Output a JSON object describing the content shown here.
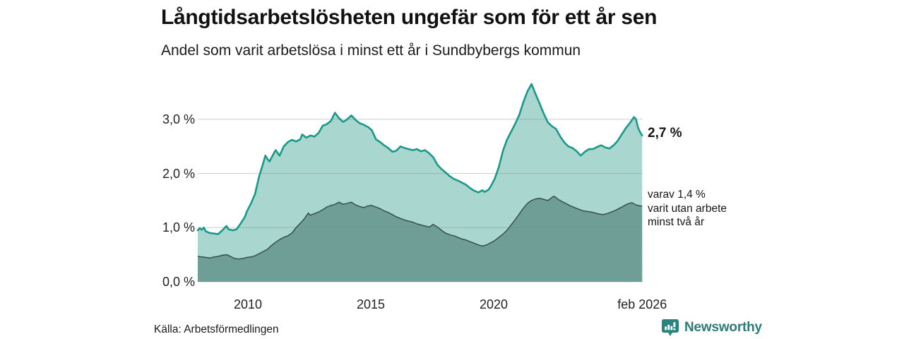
{
  "header": {
    "title": "Långtidsarbetslösheten ungefär som för ett år sen",
    "subtitle": "Andel som varit arbetslösa i minst ett år i Sundbybergs kommun"
  },
  "chart_data": {
    "type": "area",
    "title": "Långtidsarbetslösheten ungefär som för ett år sen",
    "subtitle": "Andel som varit arbetslösa i minst ett år i Sundbybergs kommun",
    "unit": "%",
    "grid": true,
    "x_axis": {
      "range": [
        2008.0,
        2026.083
      ],
      "ticks": [
        {
          "t": 2010.04,
          "label": "2010"
        },
        {
          "t": 2015.04,
          "label": "2015"
        },
        {
          "t": 2020.04,
          "label": "2020"
        },
        {
          "t": 2026.083,
          "label": "feb 2026"
        }
      ]
    },
    "y_axis": {
      "range": [
        0,
        3.8
      ],
      "ticks": [
        {
          "value": 0,
          "label": "0,0 %"
        },
        {
          "value": 1,
          "label": "1,0 %"
        },
        {
          "value": 2,
          "label": "2,0 %"
        },
        {
          "value": 3,
          "label": "3,0 %"
        }
      ]
    },
    "colors": {
      "total_line": "#1a998a",
      "total_fill": "#a9d6cf",
      "two_year_line": "#35504d",
      "two_year_fill": "#6f9e97",
      "gridline": "#d9dcdc"
    },
    "end_labels": {
      "total": "2,7 %",
      "two_years": "varav 1,4 %\nvarit utan arbete\nminst två år"
    },
    "series": [
      {
        "name": "Andel arbetslösa minst ett år",
        "end_value": 2.7,
        "points": [
          [
            2008.0,
            0.95
          ],
          [
            2008.08,
            0.99
          ],
          [
            2008.17,
            0.96
          ],
          [
            2008.25,
            1.0
          ],
          [
            2008.33,
            0.93
          ],
          [
            2008.5,
            0.9
          ],
          [
            2008.67,
            0.89
          ],
          [
            2008.83,
            0.88
          ],
          [
            2009.0,
            0.95
          ],
          [
            2009.08,
            0.99
          ],
          [
            2009.17,
            1.03
          ],
          [
            2009.25,
            0.97
          ],
          [
            2009.42,
            0.95
          ],
          [
            2009.58,
            0.97
          ],
          [
            2009.75,
            1.08
          ],
          [
            2009.92,
            1.2
          ],
          [
            2010.0,
            1.3
          ],
          [
            2010.17,
            1.45
          ],
          [
            2010.33,
            1.62
          ],
          [
            2010.5,
            1.95
          ],
          [
            2010.67,
            2.2
          ],
          [
            2010.75,
            2.33
          ],
          [
            2010.83,
            2.27
          ],
          [
            2010.92,
            2.22
          ],
          [
            2011.08,
            2.36
          ],
          [
            2011.17,
            2.43
          ],
          [
            2011.33,
            2.33
          ],
          [
            2011.5,
            2.5
          ],
          [
            2011.67,
            2.58
          ],
          [
            2011.83,
            2.62
          ],
          [
            2012.0,
            2.59
          ],
          [
            2012.17,
            2.63
          ],
          [
            2012.25,
            2.72
          ],
          [
            2012.42,
            2.66
          ],
          [
            2012.58,
            2.7
          ],
          [
            2012.75,
            2.68
          ],
          [
            2012.92,
            2.75
          ],
          [
            2013.08,
            2.88
          ],
          [
            2013.25,
            2.91
          ],
          [
            2013.42,
            2.97
          ],
          [
            2013.58,
            3.12
          ],
          [
            2013.75,
            3.02
          ],
          [
            2013.92,
            2.95
          ],
          [
            2014.08,
            3.0
          ],
          [
            2014.25,
            3.07
          ],
          [
            2014.42,
            2.99
          ],
          [
            2014.58,
            2.93
          ],
          [
            2014.75,
            2.9
          ],
          [
            2014.92,
            2.86
          ],
          [
            2015.08,
            2.8
          ],
          [
            2015.25,
            2.63
          ],
          [
            2015.42,
            2.58
          ],
          [
            2015.58,
            2.52
          ],
          [
            2015.75,
            2.47
          ],
          [
            2015.92,
            2.4
          ],
          [
            2016.08,
            2.42
          ],
          [
            2016.25,
            2.5
          ],
          [
            2016.42,
            2.47
          ],
          [
            2016.58,
            2.45
          ],
          [
            2016.75,
            2.43
          ],
          [
            2016.92,
            2.45
          ],
          [
            2017.08,
            2.41
          ],
          [
            2017.25,
            2.43
          ],
          [
            2017.42,
            2.37
          ],
          [
            2017.58,
            2.3
          ],
          [
            2017.75,
            2.16
          ],
          [
            2017.92,
            2.08
          ],
          [
            2018.08,
            2.02
          ],
          [
            2018.25,
            1.95
          ],
          [
            2018.42,
            1.9
          ],
          [
            2018.58,
            1.87
          ],
          [
            2018.75,
            1.83
          ],
          [
            2018.92,
            1.79
          ],
          [
            2019.08,
            1.73
          ],
          [
            2019.25,
            1.68
          ],
          [
            2019.42,
            1.65
          ],
          [
            2019.58,
            1.69
          ],
          [
            2019.67,
            1.66
          ],
          [
            2019.83,
            1.7
          ],
          [
            2019.92,
            1.76
          ],
          [
            2020.08,
            1.9
          ],
          [
            2020.25,
            2.12
          ],
          [
            2020.42,
            2.42
          ],
          [
            2020.58,
            2.62
          ],
          [
            2020.75,
            2.77
          ],
          [
            2020.92,
            2.92
          ],
          [
            2021.08,
            3.08
          ],
          [
            2021.25,
            3.32
          ],
          [
            2021.42,
            3.52
          ],
          [
            2021.58,
            3.65
          ],
          [
            2021.75,
            3.46
          ],
          [
            2021.92,
            3.28
          ],
          [
            2022.08,
            3.1
          ],
          [
            2022.25,
            2.94
          ],
          [
            2022.42,
            2.87
          ],
          [
            2022.58,
            2.82
          ],
          [
            2022.75,
            2.68
          ],
          [
            2022.92,
            2.57
          ],
          [
            2023.08,
            2.5
          ],
          [
            2023.25,
            2.47
          ],
          [
            2023.42,
            2.41
          ],
          [
            2023.58,
            2.33
          ],
          [
            2023.75,
            2.4
          ],
          [
            2023.92,
            2.45
          ],
          [
            2024.08,
            2.45
          ],
          [
            2024.25,
            2.49
          ],
          [
            2024.42,
            2.52
          ],
          [
            2024.58,
            2.48
          ],
          [
            2024.75,
            2.46
          ],
          [
            2024.92,
            2.52
          ],
          [
            2025.08,
            2.6
          ],
          [
            2025.25,
            2.72
          ],
          [
            2025.42,
            2.84
          ],
          [
            2025.58,
            2.93
          ],
          [
            2025.75,
            3.04
          ],
          [
            2025.83,
            3.0
          ],
          [
            2025.92,
            2.84
          ],
          [
            2026.0,
            2.76
          ],
          [
            2026.08,
            2.7
          ]
        ]
      },
      {
        "name": "varav utan arbete minst två år",
        "end_value": 1.4,
        "points": [
          [
            2008.0,
            0.47
          ],
          [
            2008.17,
            0.46
          ],
          [
            2008.33,
            0.45
          ],
          [
            2008.5,
            0.44
          ],
          [
            2008.67,
            0.46
          ],
          [
            2008.83,
            0.47
          ],
          [
            2009.0,
            0.49
          ],
          [
            2009.17,
            0.5
          ],
          [
            2009.33,
            0.47
          ],
          [
            2009.5,
            0.43
          ],
          [
            2009.67,
            0.42
          ],
          [
            2009.83,
            0.43
          ],
          [
            2010.0,
            0.45
          ],
          [
            2010.17,
            0.46
          ],
          [
            2010.33,
            0.48
          ],
          [
            2010.5,
            0.52
          ],
          [
            2010.67,
            0.56
          ],
          [
            2010.83,
            0.6
          ],
          [
            2011.0,
            0.67
          ],
          [
            2011.17,
            0.73
          ],
          [
            2011.33,
            0.78
          ],
          [
            2011.5,
            0.82
          ],
          [
            2011.67,
            0.85
          ],
          [
            2011.83,
            0.9
          ],
          [
            2012.0,
            1.0
          ],
          [
            2012.17,
            1.08
          ],
          [
            2012.33,
            1.16
          ],
          [
            2012.5,
            1.27
          ],
          [
            2012.58,
            1.23
          ],
          [
            2012.75,
            1.26
          ],
          [
            2012.92,
            1.29
          ],
          [
            2013.08,
            1.33
          ],
          [
            2013.25,
            1.38
          ],
          [
            2013.42,
            1.41
          ],
          [
            2013.58,
            1.43
          ],
          [
            2013.75,
            1.47
          ],
          [
            2013.92,
            1.43
          ],
          [
            2014.08,
            1.45
          ],
          [
            2014.25,
            1.47
          ],
          [
            2014.42,
            1.42
          ],
          [
            2014.58,
            1.39
          ],
          [
            2014.75,
            1.37
          ],
          [
            2014.92,
            1.4
          ],
          [
            2015.08,
            1.41
          ],
          [
            2015.25,
            1.38
          ],
          [
            2015.42,
            1.35
          ],
          [
            2015.58,
            1.31
          ],
          [
            2015.75,
            1.28
          ],
          [
            2015.92,
            1.24
          ],
          [
            2016.08,
            1.2
          ],
          [
            2016.25,
            1.17
          ],
          [
            2016.42,
            1.14
          ],
          [
            2016.58,
            1.12
          ],
          [
            2016.75,
            1.1
          ],
          [
            2016.92,
            1.07
          ],
          [
            2017.08,
            1.05
          ],
          [
            2017.25,
            1.03
          ],
          [
            2017.42,
            1.01
          ],
          [
            2017.58,
            1.06
          ],
          [
            2017.75,
            1.01
          ],
          [
            2017.92,
            0.95
          ],
          [
            2018.08,
            0.9
          ],
          [
            2018.25,
            0.87
          ],
          [
            2018.42,
            0.85
          ],
          [
            2018.58,
            0.82
          ],
          [
            2018.75,
            0.79
          ],
          [
            2018.92,
            0.77
          ],
          [
            2019.08,
            0.74
          ],
          [
            2019.25,
            0.71
          ],
          [
            2019.42,
            0.68
          ],
          [
            2019.58,
            0.66
          ],
          [
            2019.75,
            0.68
          ],
          [
            2019.92,
            0.72
          ],
          [
            2020.08,
            0.76
          ],
          [
            2020.25,
            0.82
          ],
          [
            2020.42,
            0.88
          ],
          [
            2020.58,
            0.95
          ],
          [
            2020.75,
            1.05
          ],
          [
            2020.92,
            1.15
          ],
          [
            2021.08,
            1.25
          ],
          [
            2021.25,
            1.36
          ],
          [
            2021.42,
            1.45
          ],
          [
            2021.58,
            1.5
          ],
          [
            2021.75,
            1.53
          ],
          [
            2021.92,
            1.54
          ],
          [
            2022.08,
            1.52
          ],
          [
            2022.25,
            1.5
          ],
          [
            2022.42,
            1.56
          ],
          [
            2022.5,
            1.58
          ],
          [
            2022.67,
            1.52
          ],
          [
            2022.83,
            1.48
          ],
          [
            2023.0,
            1.44
          ],
          [
            2023.17,
            1.4
          ],
          [
            2023.33,
            1.37
          ],
          [
            2023.5,
            1.34
          ],
          [
            2023.67,
            1.31
          ],
          [
            2023.83,
            1.3
          ],
          [
            2024.0,
            1.29
          ],
          [
            2024.17,
            1.27
          ],
          [
            2024.33,
            1.25
          ],
          [
            2024.5,
            1.24
          ],
          [
            2024.67,
            1.26
          ],
          [
            2024.83,
            1.29
          ],
          [
            2025.0,
            1.32
          ],
          [
            2025.17,
            1.36
          ],
          [
            2025.33,
            1.4
          ],
          [
            2025.5,
            1.44
          ],
          [
            2025.67,
            1.46
          ],
          [
            2025.83,
            1.42
          ],
          [
            2026.0,
            1.4
          ],
          [
            2026.08,
            1.4
          ]
        ]
      }
    ]
  },
  "footer": {
    "source": "Källa: Arbetsförmedlingen",
    "brand": "Newsworthy"
  }
}
